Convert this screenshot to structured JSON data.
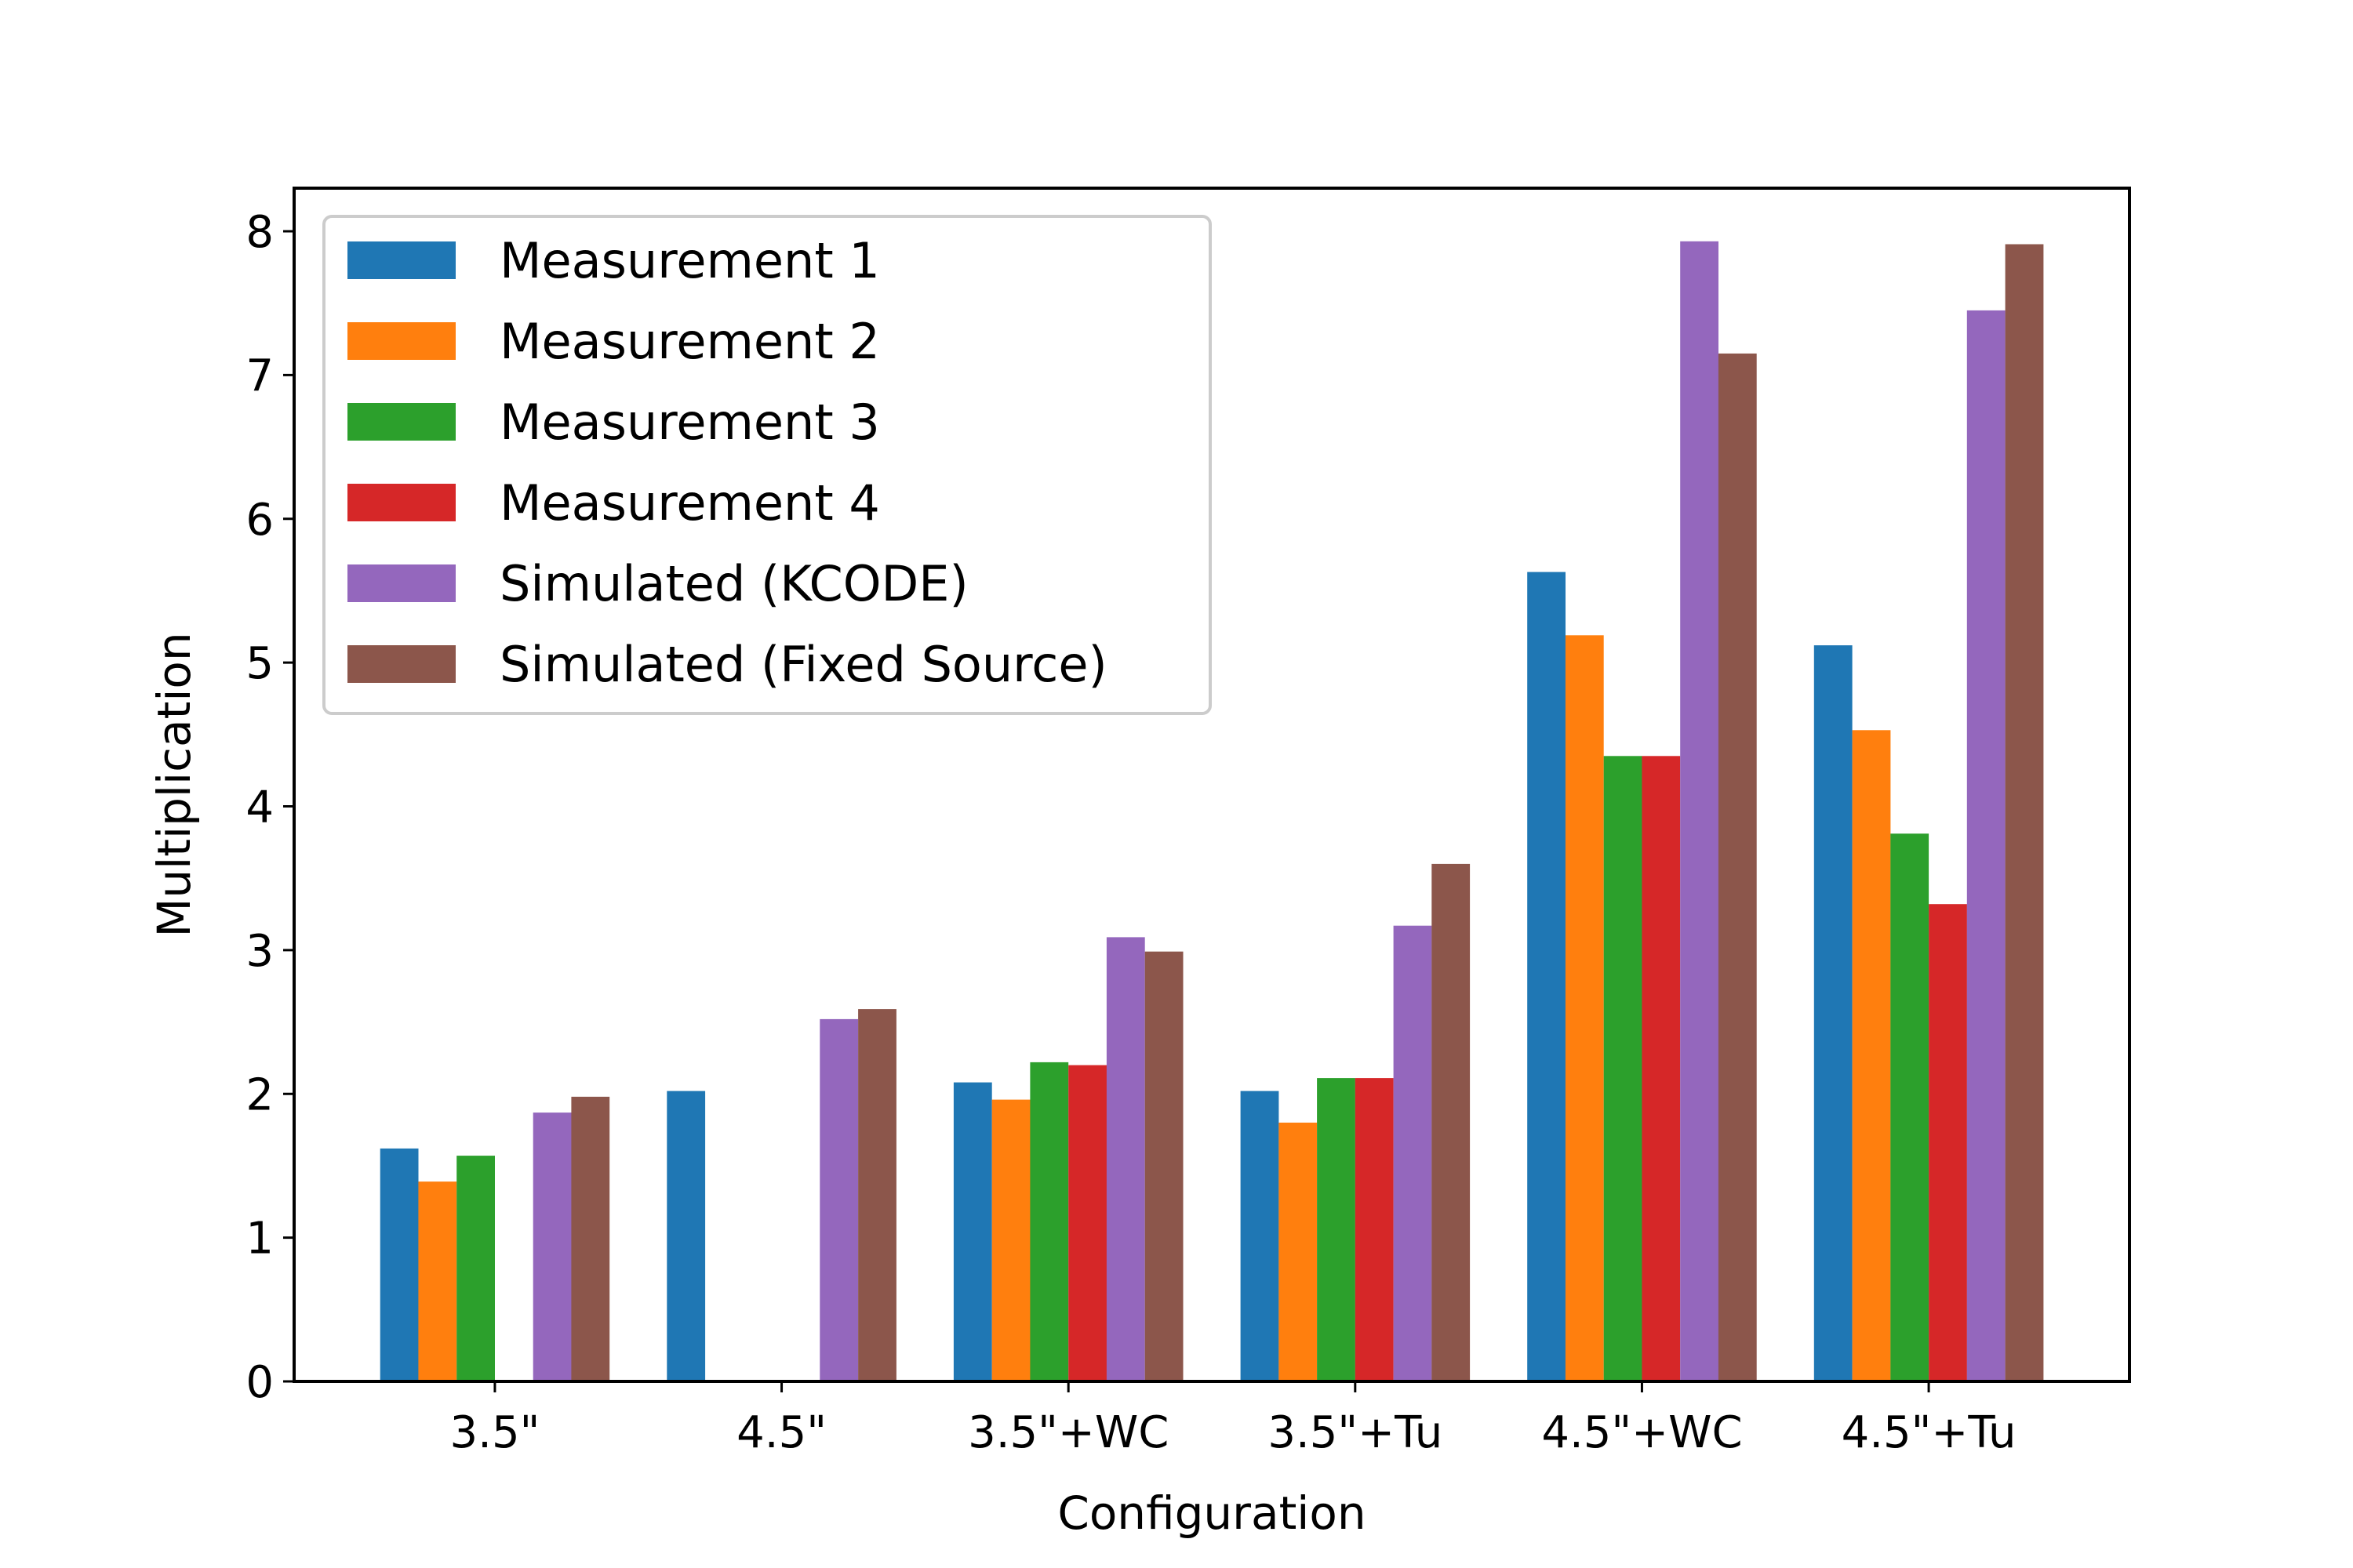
{
  "chart_data": {
    "type": "bar",
    "title": "",
    "xlabel": "Configuration",
    "ylabel": "Multiplication",
    "ylim": [
      0,
      8.3
    ],
    "yticks": [
      0,
      1,
      2,
      3,
      4,
      5,
      6,
      7,
      8
    ],
    "grid": false,
    "legend_position": "top-left",
    "categories": [
      "3.5\"",
      "4.5\"",
      "3.5\"+WC",
      "3.5\"+Tu",
      "4.5\"+WC",
      "4.5\"+Tu"
    ],
    "series": [
      {
        "name": "Measurement 1",
        "color": "#1f77b4",
        "values": [
          1.62,
          2.02,
          2.08,
          2.02,
          5.63,
          5.12
        ]
      },
      {
        "name": "Measurement 2",
        "color": "#ff7f0e",
        "values": [
          1.39,
          0,
          1.96,
          1.8,
          5.19,
          4.53
        ]
      },
      {
        "name": "Measurement 3",
        "color": "#2ca02c",
        "values": [
          1.57,
          0,
          2.22,
          2.11,
          4.35,
          3.81
        ]
      },
      {
        "name": "Measurement 4",
        "color": "#d62728",
        "values": [
          0,
          0,
          2.2,
          2.11,
          4.35,
          3.32
        ]
      },
      {
        "name": "Simulated (KCODE)",
        "color": "#9467bd",
        "values": [
          1.87,
          2.52,
          3.09,
          3.17,
          7.93,
          7.45
        ]
      },
      {
        "name": "Simulated (Fixed Source)",
        "color": "#8c564b",
        "values": [
          1.98,
          2.59,
          2.99,
          3.6,
          7.15,
          7.91
        ]
      }
    ]
  }
}
